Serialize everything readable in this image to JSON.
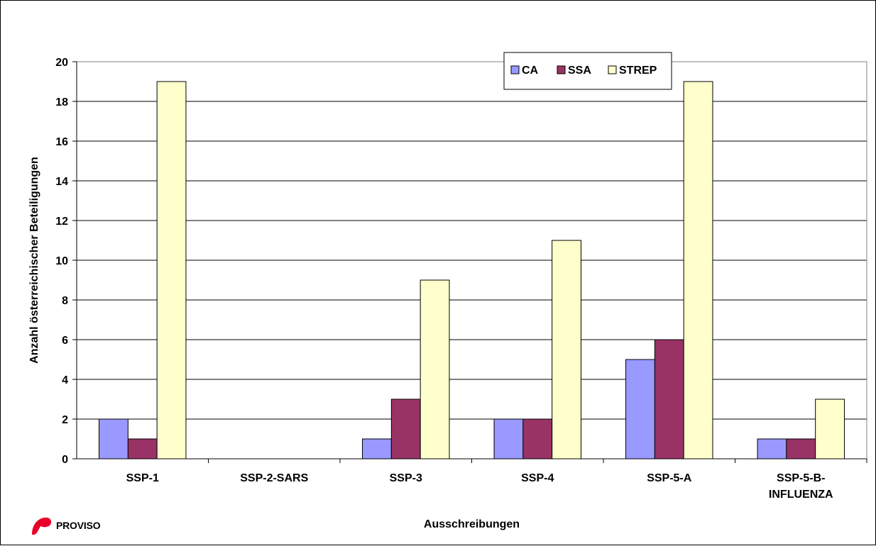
{
  "chart_data": {
    "type": "bar",
    "title": "",
    "xlabel": "Ausschreibungen",
    "ylabel": "Anzahl österreichischer Beteiligungen",
    "categories": [
      [
        "SSP-1"
      ],
      [
        "SSP-2-SARS"
      ],
      [
        "SSP-3"
      ],
      [
        "SSP-4"
      ],
      [
        "SSP-5-A"
      ],
      [
        "SSP-5-B-",
        "INFLUENZA"
      ]
    ],
    "series": [
      {
        "name": "CA",
        "color": "#9999FF",
        "values": [
          2,
          0,
          1,
          2,
          5,
          1
        ]
      },
      {
        "name": "SSA",
        "color": "#993366",
        "values": [
          1,
          0,
          3,
          2,
          6,
          1
        ]
      },
      {
        "name": "STREP",
        "color": "#FFFFCC",
        "values": [
          19,
          0,
          9,
          11,
          19,
          3
        ]
      }
    ],
    "ylim": [
      0,
      20
    ],
    "yticks": [
      0,
      2,
      4,
      6,
      8,
      10,
      12,
      14,
      16,
      18,
      20
    ],
    "grid": true,
    "legend": "top-right"
  },
  "logo": {
    "text": "PROVISO",
    "color": "#E8002A"
  }
}
